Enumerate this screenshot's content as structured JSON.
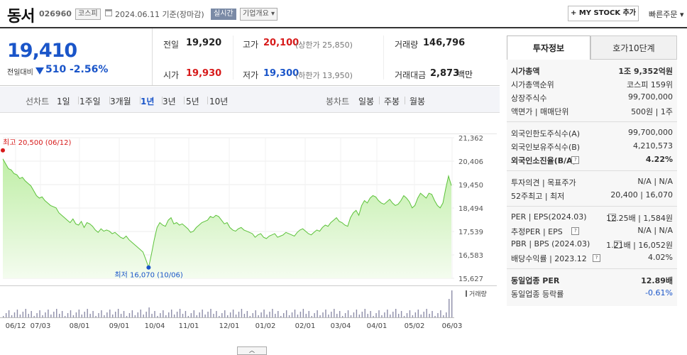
{
  "header": {
    "name": "동서",
    "code": "026960",
    "market": "코스피",
    "date_text": "2024.06.11 기준(장마감)",
    "realtime": "실시간",
    "company_info": "기업개요 ▾",
    "mystock": "+ MY STOCK 추가",
    "quick_order": "빠른주문 ▾"
  },
  "price": {
    "current": "19,410",
    "diff_label": "전일대비",
    "diff_value": "510",
    "diff_rate": "-2.56%",
    "prev_label": "전일",
    "prev": "19,920",
    "open_label": "시가",
    "open": "19,930",
    "high_label": "고가",
    "high": "20,100",
    "upper_limit": "(상한가 25,850)",
    "low_label": "저가",
    "low": "19,300",
    "lower_limit": "(하한가 13,950)",
    "volume_label": "거래량",
    "volume": "146,796",
    "amount_label": "거래대금",
    "amount": "2,873",
    "amount_unit": "백만"
  },
  "periods": {
    "line_label": "선차트",
    "line": [
      "1일",
      "1주일",
      "3개월",
      "1년",
      "3년",
      "5년",
      "10년"
    ],
    "active": "1년",
    "candle_label": "봉차트",
    "candle": [
      "일봉",
      "주봉",
      "월봉"
    ]
  },
  "chart_data": {
    "type": "area",
    "y_ticks": [
      "21,362",
      "20,406",
      "19,450",
      "18,494",
      "17,539",
      "16,583",
      "15,627"
    ],
    "ylim": [
      15627,
      21362
    ],
    "x_ticks": [
      "06/12",
      "07/03",
      "08/01",
      "09/01",
      "10/04",
      "11/01",
      "12/01",
      "01/02",
      "02/01",
      "03/04",
      "04/01",
      "05/02",
      "06/03"
    ],
    "high_label": "최고 20,500 (06/12)",
    "low_label": "최저 16,070 (10/06)",
    "volume_label": "거래량",
    "values": [
      20500,
      20300,
      20100,
      20050,
      19900,
      19850,
      19700,
      19750,
      19600,
      19500,
      19400,
      19200,
      19000,
      18900,
      18950,
      18800,
      18700,
      18600,
      18550,
      18500,
      18300,
      18200,
      18100,
      18000,
      17900,
      18050,
      17850,
      17800,
      17950,
      17700,
      17900,
      17850,
      17750,
      17600,
      17500,
      17650,
      17550,
      17600,
      17550,
      17450,
      17500,
      17400,
      17300,
      17250,
      17350,
      17200,
      17100,
      17000,
      16900,
      16800,
      16700,
      16400,
      16070,
      16600,
      17200,
      17700,
      17900,
      17800,
      17750,
      18000,
      18100,
      17850,
      17900,
      17800,
      17850,
      17750,
      17650,
      17500,
      17550,
      17700,
      17800,
      17900,
      17950,
      18000,
      18150,
      18100,
      18200,
      18150,
      18000,
      17850,
      17900,
      17700,
      17600,
      17550,
      17650,
      17700,
      17600,
      17550,
      17500,
      17450,
      17300,
      17400,
      17450,
      17300,
      17250,
      17350,
      17400,
      17450,
      17300,
      17350,
      17400,
      17500,
      17450,
      17400,
      17350,
      17500,
      17600,
      17650,
      17550,
      17450,
      17400,
      17500,
      17600,
      17550,
      17700,
      17800,
      17750,
      17900,
      18000,
      18100,
      17950,
      17900,
      17800,
      17750,
      18100,
      18300,
      18400,
      18200,
      18600,
      18800,
      18700,
      18900,
      19000,
      18950,
      18800,
      18700,
      18650,
      18750,
      18850,
      18700,
      18600,
      18650,
      18800,
      19000,
      18900,
      18750,
      18500,
      18600,
      18900,
      19100,
      19000,
      18900,
      19100,
      19050,
      18800,
      18600,
      18500,
      18700,
      19300,
      19800,
      19410
    ]
  },
  "right_panel": {
    "tabs": [
      "투자정보",
      "호가10단계"
    ],
    "groups": [
      [
        {
          "k": "시가총액",
          "v": "1조 9,352억원",
          "bold": true
        },
        {
          "k": "시가총액순위",
          "v": "코스피 159위"
        },
        {
          "k": "상장주식수",
          "v": "99,700,000"
        },
        {
          "k": "액면가 | 매매단위",
          "v": "500원 | 1주"
        }
      ],
      [
        {
          "k": "외국인한도주식수(A)",
          "v": "99,700,000"
        },
        {
          "k": "외국인보유주식수(B)",
          "v": "4,210,573"
        },
        {
          "k": "외국인소진율(B/A)",
          "v": "4.22%",
          "bold": true,
          "q": true
        }
      ],
      [
        {
          "k": "투자의견 | 목표주가",
          "v": "N/A | N/A"
        },
        {
          "k": "52주최고 | 최저",
          "v": "20,400 | 16,070"
        }
      ],
      [
        {
          "k": "PER | EPS(2024.03)",
          "v": "12.25배 | 1,584원",
          "q": true
        },
        {
          "k": "추정PER | EPS",
          "v": "N/A | N/A",
          "q": true
        },
        {
          "k": "PBR | BPS (2024.03)",
          "v": "1.21배 | 16,052원",
          "q": true
        },
        {
          "k": "배당수익률 | 2023.12",
          "v": "4.02%",
          "q": true
        }
      ],
      [
        {
          "k": "동일업종 PER",
          "v": "12.89배",
          "bold": true
        },
        {
          "k": "동일업종 등락률",
          "v": "-0.61%",
          "blue": true
        }
      ]
    ]
  },
  "colors": {
    "up": "#d71a1a",
    "down": "#1a55c9",
    "area": "#c9f0b2",
    "line": "#5cc23a"
  }
}
